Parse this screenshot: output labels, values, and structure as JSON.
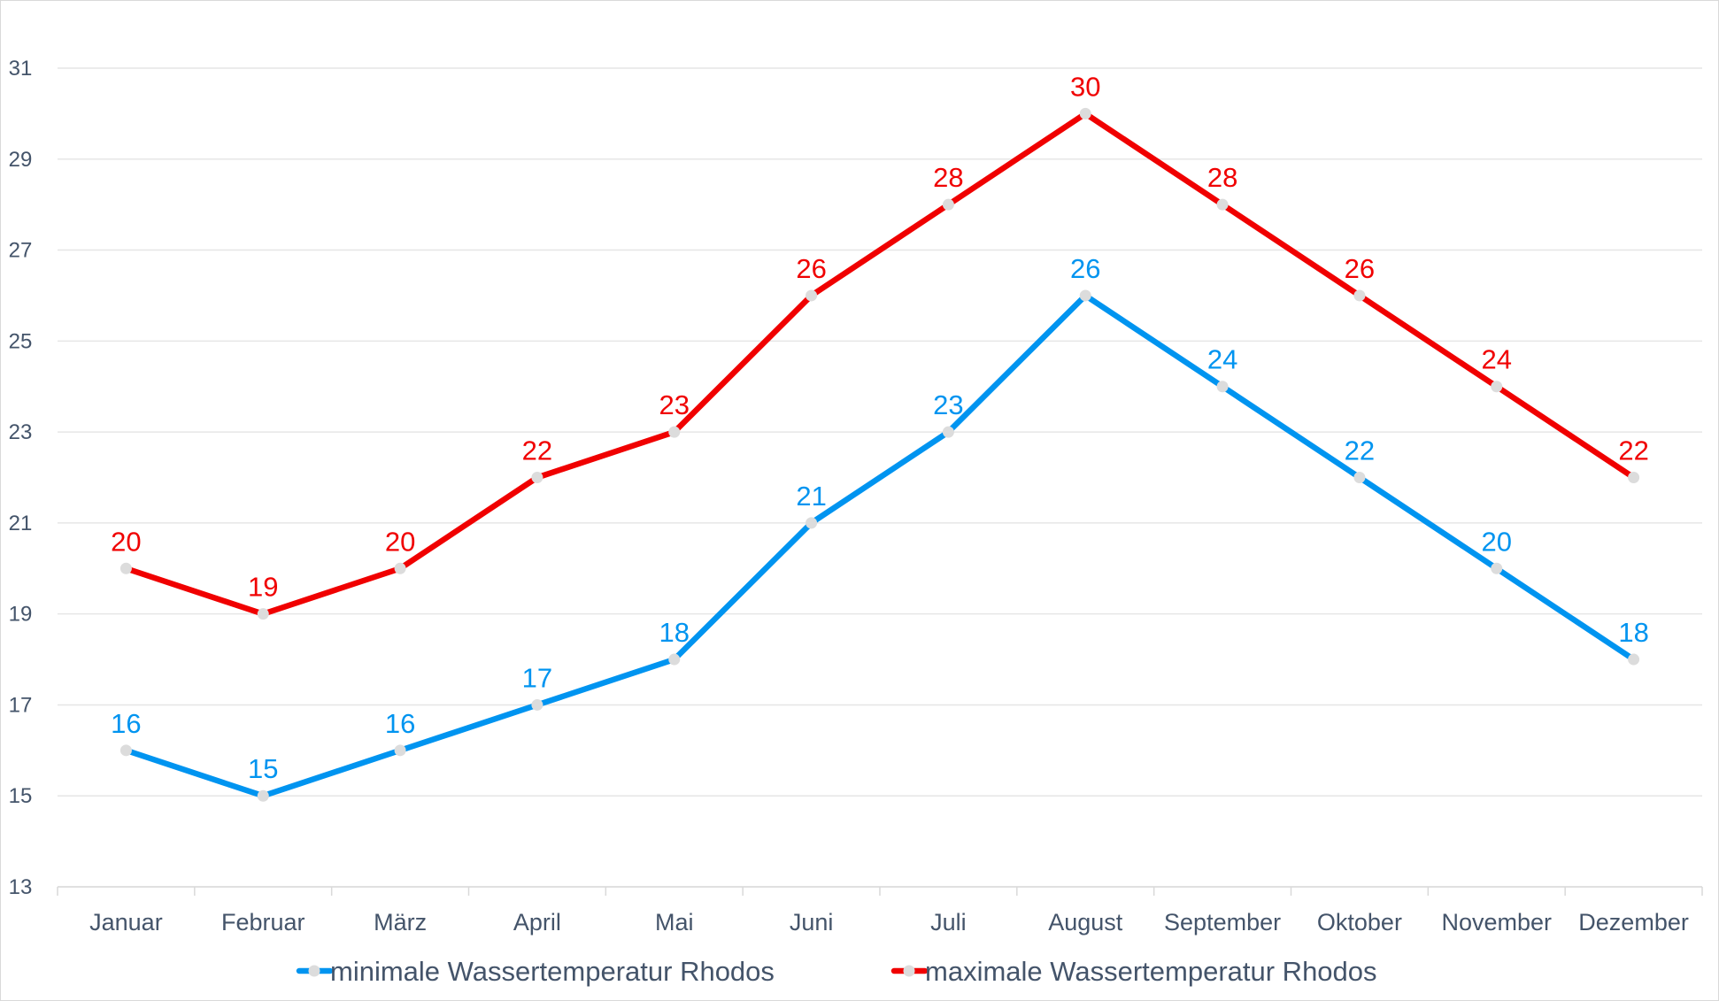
{
  "chart_data": {
    "type": "line",
    "categories": [
      "Januar",
      "Februar",
      "März",
      "April",
      "Mai",
      "Juni",
      "Juli",
      "August",
      "September",
      "Oktober",
      "November",
      "Dezember"
    ],
    "series": [
      {
        "name": "minimale Wassertemperatur Rhodos",
        "color": "#0094f0",
        "values": [
          16,
          15,
          16,
          17,
          18,
          21,
          23,
          26,
          24,
          22,
          20,
          18
        ]
      },
      {
        "name": "maximale Wassertemperatur Rhodos",
        "color": "#f00000",
        "values": [
          20,
          19,
          20,
          22,
          23,
          26,
          28,
          30,
          28,
          26,
          24,
          22
        ]
      }
    ],
    "yticks": [
      13,
      15,
      17,
      19,
      21,
      23,
      25,
      27,
      29,
      31
    ],
    "ylim": [
      13,
      31
    ],
    "grid": true,
    "legend_position": "bottom",
    "marker_color": "#dcdcdc",
    "grid_color": "#e6e6e6",
    "axis_text_color": "#44546a"
  }
}
